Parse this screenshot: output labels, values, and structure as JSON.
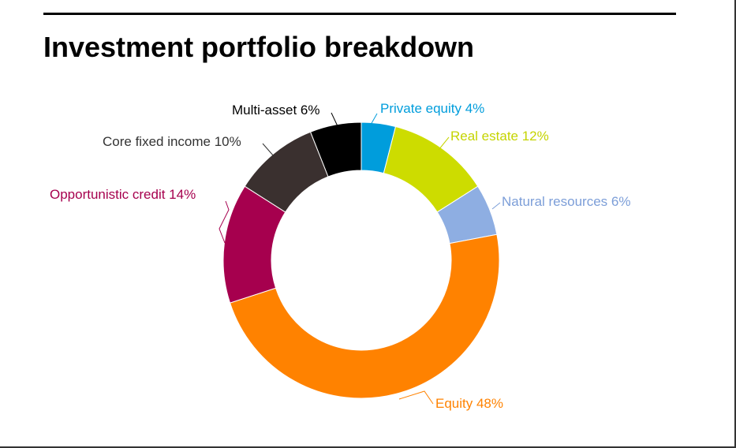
{
  "page": {
    "title": "Investment portfolio breakdown"
  },
  "chart_data": {
    "type": "pie",
    "style": "donut",
    "title": "Investment portfolio breakdown",
    "slices": [
      {
        "name": "Private equity",
        "value": 4,
        "label": "Private equity 4%",
        "color": "#009ddc"
      },
      {
        "name": "Real estate",
        "value": 12,
        "label": "Real estate 12%",
        "color": "#cddc00"
      },
      {
        "name": "Natural resources",
        "value": 6,
        "label": "Natural resources 6%",
        "color": "#8eaee2"
      },
      {
        "name": "Equity",
        "value": 48,
        "label": "Equity 48%",
        "color": "#ff8200"
      },
      {
        "name": "Opportunistic credit",
        "value": 14,
        "label": "Opportunistic credit 14%",
        "color": "#a6004e"
      },
      {
        "name": "Core fixed income",
        "value": 10,
        "label": "Core fixed income 10%",
        "color": "#3a302f"
      },
      {
        "name": "Multi-asset",
        "value": 6,
        "label": "Multi-asset 6%",
        "color": "#000000"
      }
    ],
    "label_colors": {
      "Private equity": "#009ddc",
      "Real estate": "#c5d400",
      "Natural resources": "#7c9ed8",
      "Equity": "#ff8200",
      "Opportunistic credit": "#a6004e",
      "Core fixed income": "#333333",
      "Multi-asset": "#000000"
    },
    "start_position": "top",
    "direction": "clockwise"
  }
}
